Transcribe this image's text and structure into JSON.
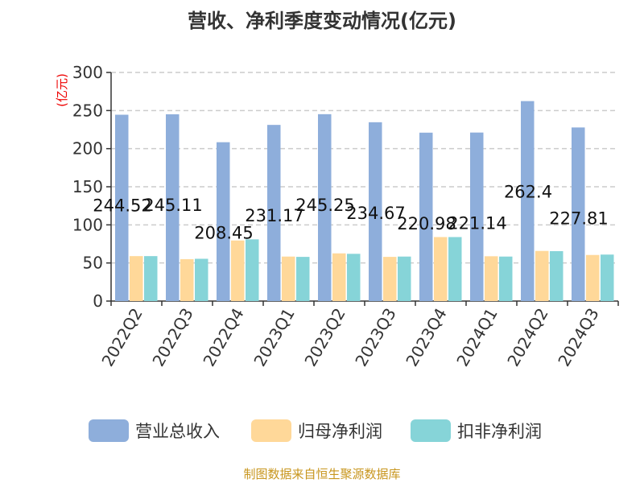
{
  "chart_data": {
    "type": "bar",
    "title": "营收、净利季度变动情况(亿元)",
    "ylabel": "(亿元)",
    "xlabel": "",
    "ylim": [
      0,
      300
    ],
    "yticks": [
      0,
      50,
      100,
      150,
      200,
      250,
      300
    ],
    "grid": true,
    "legend_position": "bottom",
    "categories": [
      "2022Q2",
      "2022Q3",
      "2022Q4",
      "2023Q1",
      "2023Q2",
      "2023Q3",
      "2023Q4",
      "2024Q1",
      "2024Q2",
      "2024Q3"
    ],
    "series": [
      {
        "name": "营业总收入",
        "color": "#8eaedb",
        "values": [
          244.52,
          245.11,
          208.45,
          231.17,
          245.25,
          234.67,
          220.98,
          221.14,
          262.4,
          227.81
        ],
        "labels": [
          "244.52",
          "245.11",
          "208.45",
          "231.17",
          "245.25",
          "234.67",
          "220.98",
          "221.14",
          "262.4",
          "227.81"
        ]
      },
      {
        "name": "归母净利润",
        "color": "#ffd899",
        "values": [
          59,
          55,
          79.5,
          58.4,
          62.6,
          58,
          84,
          58.8,
          65.8,
          60.5
        ]
      },
      {
        "name": "扣非净利润",
        "color": "#86d4d8",
        "values": [
          59,
          55.5,
          81,
          58,
          62,
          58.4,
          84,
          58.4,
          65.5,
          61
        ]
      }
    ]
  },
  "source": "制图数据来自恒生聚源数据库"
}
